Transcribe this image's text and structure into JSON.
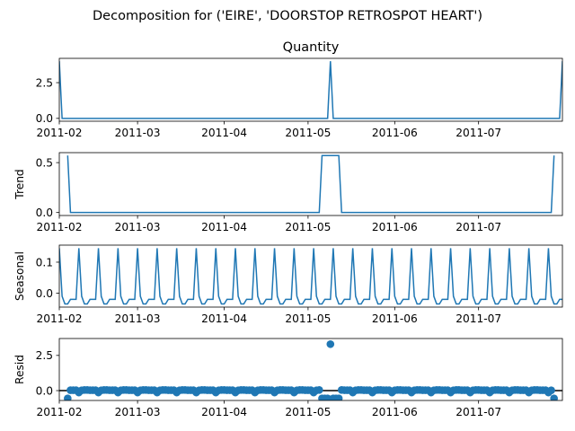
{
  "figure": {
    "suptitle": "Decomposition for ('EIRE', 'DOORSTOP RETROSPOT HEART')"
  },
  "colors": {
    "series": "#1f77b4",
    "axes": "#000000",
    "background": "#ffffff"
  },
  "chart_data": [
    {
      "type": "line",
      "title": "Quantity",
      "ylabel": "",
      "x_start": "2011-02-01",
      "x_end": "2011-07-31",
      "frequency": "daily",
      "xticks": [
        "2011-02",
        "2011-03",
        "2011-04",
        "2011-05",
        "2011-06",
        "2011-07"
      ],
      "yticks": [
        "0.0",
        "2.5"
      ],
      "ylim": [
        -0.2,
        4.2
      ],
      "baseline": 0,
      "spikes": [
        {
          "date": "2011-02-01",
          "value": 4
        },
        {
          "date": "2011-05-09",
          "value": 4
        },
        {
          "date": "2011-07-31",
          "value": 4
        }
      ]
    },
    {
      "type": "line",
      "title": "",
      "ylabel": "Trend",
      "x_start": "2011-02-04",
      "x_end": "2011-07-28",
      "xticks": [
        "2011-02",
        "2011-03",
        "2011-04",
        "2011-05",
        "2011-06",
        "2011-07"
      ],
      "yticks": [
        "0.0",
        "0.5"
      ],
      "ylim": [
        -0.03,
        0.6
      ],
      "baseline": 0,
      "segments": [
        {
          "from": "2011-02-04",
          "to": "2011-02-04",
          "value": 0.571
        },
        {
          "from": "2011-05-06",
          "to": "2011-05-12",
          "value": 0.571
        },
        {
          "from": "2011-07-28",
          "to": "2011-07-28",
          "value": 0.571
        }
      ]
    },
    {
      "type": "line",
      "title": "",
      "ylabel": "Seasonal",
      "x_start": "2011-02-01",
      "x_end": "2011-07-31",
      "period_days": 7,
      "weekly_pattern": [
        0.145,
        -0.01,
        -0.035,
        -0.035,
        -0.02,
        -0.02,
        -0.02
      ],
      "xticks": [
        "2011-02",
        "2011-03",
        "2011-04",
        "2011-05",
        "2011-06",
        "2011-07"
      ],
      "yticks": [
        "0.0",
        "0.1"
      ],
      "ylim": [
        -0.045,
        0.155
      ]
    },
    {
      "type": "scatter",
      "title": "",
      "ylabel": "Resid",
      "x_start": "2011-02-04",
      "x_end": "2011-07-28",
      "xticks": [
        "2011-02",
        "2011-03",
        "2011-04",
        "2011-05",
        "2011-06",
        "2011-07"
      ],
      "yticks": [
        "0.0",
        "2.5"
      ],
      "ylim": [
        -0.7,
        3.7
      ],
      "hline": 0,
      "weekly_pattern": [
        -0.135,
        0.02,
        0.045,
        0.045,
        0.03,
        0.03,
        0.03
      ],
      "outliers": [
        {
          "date": "2011-02-04",
          "value": -0.55
        },
        {
          "date": "2011-05-06",
          "value": -0.55
        },
        {
          "date": "2011-05-07",
          "value": -0.55
        },
        {
          "date": "2011-05-08",
          "value": -0.55
        },
        {
          "date": "2011-05-09",
          "value": 3.3
        },
        {
          "date": "2011-05-10",
          "value": -0.55
        },
        {
          "date": "2011-05-11",
          "value": -0.55
        },
        {
          "date": "2011-05-12",
          "value": -0.55
        },
        {
          "date": "2011-07-28",
          "value": -0.55
        }
      ]
    }
  ]
}
